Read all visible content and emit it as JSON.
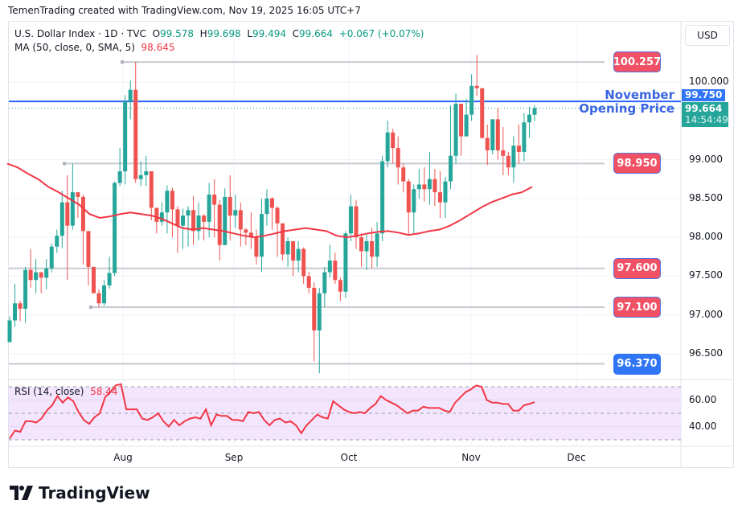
{
  "header": {
    "credit": "TemenTrading created with TradingView.com, Nov 19, 2025 16:05 UTC+7"
  },
  "legend": {
    "symbol": "U.S. Dollar Index · 1D · TVC",
    "open_label": "O",
    "open": "99.578",
    "high_label": "H",
    "high": "99.698",
    "low_label": "L",
    "low": "99.494",
    "close_label": "C",
    "close": "99.664",
    "change": "+0.067 (+0.07%)",
    "ma_label": "MA (50, close, 0, SMA, 5)",
    "ma_value": "98.645"
  },
  "currency_button": "USD",
  "price_axis": {
    "labels": [
      "100.000",
      "99.000",
      "98.500",
      "98.000",
      "97.500",
      "97.000",
      "96.500"
    ],
    "values": [
      100.0,
      99.0,
      98.5,
      98.0,
      97.5,
      97.0,
      96.5
    ],
    "marker_blue": "99.750",
    "marker_last_price": "99.664",
    "marker_countdown": "14:54:49"
  },
  "levels": [
    {
      "label": "100.257",
      "price": 100.257,
      "style": "red"
    },
    {
      "label": "98.950",
      "price": 98.95,
      "style": "red"
    },
    {
      "label": "97.600",
      "price": 97.6,
      "style": "red"
    },
    {
      "label": "97.100",
      "price": 97.1,
      "style": "red"
    },
    {
      "label": "96.370",
      "price": 96.37,
      "style": "blue"
    }
  ],
  "annotation": {
    "line1": "November",
    "line2": "Opening Price",
    "price": 99.75
  },
  "rsi": {
    "label": "RSI (14, close)",
    "value": "58.44",
    "axis_labels": [
      "60.00",
      "40.00"
    ]
  },
  "time_axis": [
    "Aug",
    "Sep",
    "Oct",
    "Nov",
    "Dec"
  ],
  "branding": "TradingView",
  "colors": {
    "up": "#26a69a",
    "down": "#ef5350",
    "ma": "#f23645",
    "level_line": "#b2b5be",
    "annotation_line": "#2962ff",
    "rsi_line": "#f23645",
    "rsi_band": "#f3e5fd"
  },
  "chart_data": {
    "type": "candlestick",
    "title": "U.S. Dollar Index · 1D · TVC",
    "xlabel": "",
    "ylabel": "USD",
    "ylim": [
      96.2,
      100.4
    ],
    "x_ticks": [
      "Aug",
      "Sep",
      "Oct",
      "Nov",
      "Dec"
    ],
    "candles": [
      [
        96.65,
        96.93,
        96.98,
        96.65
      ],
      [
        96.93,
        97.15,
        97.4,
        96.85
      ],
      [
        97.15,
        97.08,
        97.18,
        96.92
      ],
      [
        97.08,
        97.58,
        97.62,
        96.9
      ],
      [
        97.58,
        97.45,
        97.85,
        97.35
      ],
      [
        97.45,
        97.55,
        97.72,
        97.28
      ],
      [
        97.55,
        97.48,
        97.42,
        97.28
      ],
      [
        97.48,
        97.6,
        97.72,
        97.33
      ],
      [
        97.6,
        97.88,
        97.92,
        97.55
      ],
      [
        97.88,
        98.02,
        98.1,
        97.8
      ],
      [
        98.02,
        98.45,
        98.6,
        97.86
      ],
      [
        98.45,
        98.15,
        98.8,
        97.45
      ],
      [
        98.15,
        98.58,
        98.95,
        98.1
      ],
      [
        98.58,
        98.52,
        98.56,
        98.25
      ],
      [
        98.52,
        98.08,
        98.55,
        97.65
      ],
      [
        98.08,
        97.62,
        97.9,
        97.38
      ],
      [
        97.62,
        97.28,
        97.55,
        97.28
      ],
      [
        97.28,
        97.15,
        97.33,
        97.1
      ],
      [
        97.15,
        97.38,
        97.45,
        97.12
      ],
      [
        97.38,
        97.54,
        97.75,
        97.34
      ],
      [
        97.54,
        98.7,
        98.72,
        97.5
      ],
      [
        98.7,
        98.85,
        99.15,
        98.66
      ],
      [
        98.85,
        99.75,
        99.83,
        98.68
      ],
      [
        99.75,
        99.9,
        100.02,
        99.52
      ],
      [
        99.9,
        98.75,
        100.26,
        98.7
      ],
      [
        98.75,
        98.8,
        98.98,
        98.66
      ],
      [
        98.8,
        98.85,
        99.05,
        98.66
      ],
      [
        98.85,
        98.38,
        98.62,
        98.22
      ],
      [
        98.38,
        98.2,
        98.35,
        98.05
      ],
      [
        98.2,
        98.32,
        98.45,
        98.15
      ],
      [
        98.32,
        98.6,
        98.67,
        98.05
      ],
      [
        98.6,
        98.36,
        98.64,
        98.0
      ],
      [
        98.36,
        98.15,
        98.4,
        97.8
      ],
      [
        98.15,
        98.28,
        98.37,
        97.85
      ],
      [
        98.28,
        98.35,
        98.4,
        97.88
      ],
      [
        98.35,
        98.08,
        98.53,
        97.9
      ],
      [
        98.08,
        98.28,
        98.45,
        97.96
      ],
      [
        98.28,
        98.2,
        98.3,
        97.96
      ],
      [
        98.2,
        98.55,
        98.7,
        98.0
      ],
      [
        98.55,
        98.42,
        98.75,
        98.0
      ],
      [
        98.42,
        97.9,
        98.48,
        97.7
      ],
      [
        97.9,
        98.52,
        98.63,
        97.96
      ],
      [
        98.52,
        98.28,
        98.8,
        97.96
      ],
      [
        98.28,
        98.35,
        98.55,
        98.12
      ],
      [
        98.35,
        98.1,
        98.45,
        97.88
      ],
      [
        98.1,
        98.06,
        98.12,
        97.9
      ],
      [
        98.06,
        98.0,
        98.32,
        97.85
      ],
      [
        98.0,
        97.75,
        98.1,
        97.65
      ],
      [
        97.75,
        98.3,
        98.5,
        97.55
      ],
      [
        98.3,
        98.5,
        98.62,
        98.15
      ],
      [
        98.5,
        98.38,
        98.52,
        98.1
      ],
      [
        98.38,
        98.18,
        98.4,
        97.75
      ],
      [
        98.18,
        97.78,
        98.1,
        97.7
      ],
      [
        97.78,
        97.95,
        98.0,
        97.62
      ],
      [
        97.95,
        97.7,
        97.78,
        97.5
      ],
      [
        97.7,
        97.85,
        97.95,
        97.55
      ],
      [
        97.85,
        97.5,
        97.87,
        97.4
      ],
      [
        97.5,
        97.35,
        97.55,
        97.28
      ],
      [
        97.35,
        96.8,
        97.42,
        96.4
      ],
      [
        96.8,
        97.28,
        97.35,
        96.25
      ],
      [
        97.28,
        97.55,
        97.62,
        97.1
      ],
      [
        97.55,
        97.7,
        97.9,
        97.48
      ],
      [
        97.7,
        97.45,
        97.8,
        97.4
      ],
      [
        97.45,
        97.3,
        97.48,
        97.18
      ],
      [
        97.3,
        98.05,
        98.08,
        97.22
      ],
      [
        98.05,
        98.4,
        98.55,
        97.95
      ],
      [
        98.4,
        98.0,
        98.48,
        97.85
      ],
      [
        98.0,
        97.82,
        98.05,
        97.62
      ],
      [
        97.82,
        97.95,
        98.05,
        97.58
      ],
      [
        97.95,
        97.75,
        98.12,
        97.6
      ],
      [
        97.75,
        98.05,
        98.2,
        97.62
      ],
      [
        98.05,
        98.98,
        99.05,
        97.95
      ],
      [
        98.98,
        99.35,
        99.5,
        98.9
      ],
      [
        99.35,
        99.15,
        99.4,
        98.95
      ],
      [
        99.15,
        98.9,
        99.3,
        98.68
      ],
      [
        98.9,
        98.72,
        98.95,
        98.58
      ],
      [
        98.72,
        98.32,
        98.75,
        98.02
      ],
      [
        98.32,
        98.62,
        98.68,
        98.05
      ],
      [
        98.62,
        98.68,
        98.88,
        98.5
      ],
      [
        98.68,
        98.62,
        98.9,
        98.46
      ],
      [
        98.62,
        98.75,
        99.1,
        98.42
      ],
      [
        98.75,
        98.58,
        98.88,
        98.4
      ],
      [
        98.58,
        98.45,
        98.85,
        98.25
      ],
      [
        98.45,
        98.72,
        98.78,
        98.25
      ],
      [
        98.72,
        99.05,
        99.7,
        98.62
      ],
      [
        99.05,
        99.72,
        99.85,
        98.95
      ],
      [
        99.72,
        99.3,
        99.7,
        99.05
      ],
      [
        99.3,
        99.58,
        99.78,
        99.4
      ],
      [
        99.58,
        99.95,
        100.1,
        99.5
      ],
      [
        99.95,
        99.92,
        100.35,
        99.82
      ],
      [
        99.92,
        99.28,
        99.7,
        99.27
      ],
      [
        99.28,
        99.12,
        99.45,
        98.93
      ],
      [
        99.12,
        99.52,
        99.4,
        99.07
      ],
      [
        99.52,
        99.12,
        99.67,
        99.0
      ],
      [
        99.12,
        99.05,
        99.42,
        98.8
      ],
      [
        99.05,
        98.9,
        99.1,
        98.8
      ],
      [
        98.9,
        99.18,
        99.3,
        98.7
      ],
      [
        99.18,
        99.1,
        99.45,
        98.95
      ],
      [
        99.1,
        99.48,
        99.6,
        98.98
      ],
      [
        99.48,
        99.58,
        99.68,
        99.28
      ],
      [
        99.578,
        99.664,
        99.698,
        99.494
      ]
    ],
    "ma50": [
      98.95,
      98.9,
      98.82,
      98.75,
      98.65,
      98.58,
      98.5,
      98.42,
      98.3,
      98.25,
      98.27,
      98.3,
      98.32,
      98.3,
      98.28,
      98.24,
      98.18,
      98.12,
      98.1,
      98.12,
      98.1,
      98.08,
      98.05,
      98.02,
      98.0,
      98.02,
      98.05,
      98.08,
      98.1,
      98.12,
      98.1,
      98.08,
      98.02,
      98.0,
      98.02,
      98.05,
      98.07,
      98.08,
      98.06,
      98.03,
      98.05,
      98.08,
      98.1,
      98.15,
      98.22,
      98.3,
      98.38,
      98.45,
      98.5,
      98.55,
      98.58,
      98.65
    ],
    "levels": [
      100.257,
      98.95,
      97.6,
      97.1,
      96.37
    ],
    "november_opening_price": 99.75,
    "last_price": 99.664,
    "rsi_series": [
      31,
      37,
      36,
      44,
      44,
      43,
      46,
      52,
      56,
      63,
      58,
      62,
      59,
      51,
      45,
      42,
      47,
      50,
      62,
      66,
      71,
      72,
      53,
      53,
      53,
      46,
      45,
      47,
      50,
      44,
      40,
      45,
      41,
      44,
      46,
      47,
      46,
      53,
      41,
      49,
      48,
      48,
      45,
      45,
      44,
      51,
      50,
      51,
      45,
      41,
      45,
      46,
      43,
      44,
      41,
      35,
      41,
      45,
      49,
      47,
      46,
      59,
      56,
      53,
      51,
      50,
      51,
      50,
      54,
      57,
      63,
      60,
      58,
      56,
      53,
      50,
      52,
      52,
      55,
      54,
      54,
      54,
      52,
      51,
      58,
      62,
      66,
      68,
      71,
      70,
      60,
      58,
      58,
      57,
      57,
      52,
      52,
      56,
      57,
      58.44
    ],
    "rsi_ylim": [
      20,
      80
    ],
    "rsi_levels": [
      70,
      50,
      30
    ]
  }
}
